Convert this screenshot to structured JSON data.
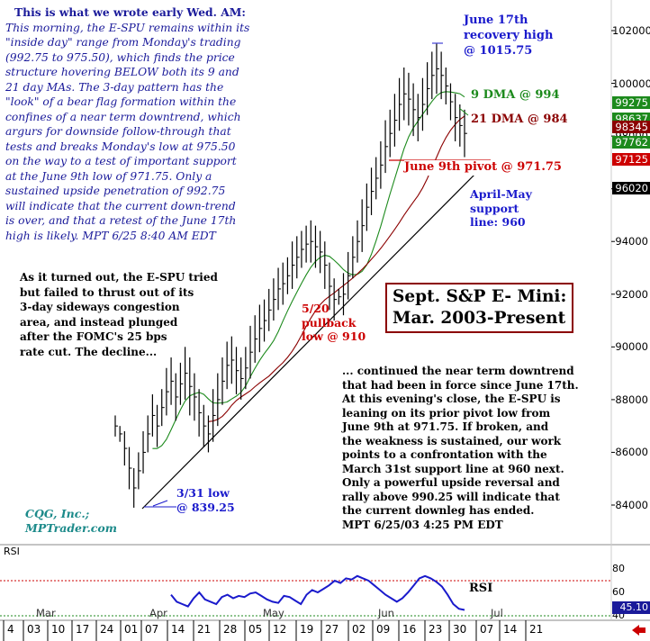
{
  "chart_data": {
    "type": "ohlc",
    "title": "Sept. S&P E- Mini:\nMar. 2003-Present",
    "source": [
      "CQG, Inc.;",
      "MPTrader.com"
    ],
    "y_axis": {
      "range": [
        83300,
        103300
      ],
      "ticks": [
        "102000",
        "100000",
        "98000",
        "96000",
        "94000",
        "92000",
        "90000",
        "88000",
        "86000",
        "84000"
      ]
    },
    "price_tags": [
      {
        "label": "99275",
        "color": "#1c8a1c",
        "value": 99275
      },
      {
        "label": "98637",
        "color": "#1c8a1c",
        "value": 98637
      },
      {
        "label": "98345",
        "color": "#8b0000",
        "value": 98345
      },
      {
        "label": "97762",
        "color": "#1c8a1c",
        "value": 97762
      },
      {
        "label": "97125",
        "color": "#cc0000",
        "value": 97125
      },
      {
        "label": "96020",
        "color": "#000000",
        "value": 96020
      }
    ],
    "x_axis": {
      "months": [
        "Mar",
        "Apr",
        "May",
        "Jun",
        "Jul"
      ],
      "days": [
        "4",
        "03",
        "10",
        "17",
        "24",
        "01",
        "07",
        "14",
        "21",
        "28",
        "05",
        "12",
        "19",
        "27",
        "02",
        "09",
        "16",
        "23",
        "30",
        "07",
        "14",
        "21"
      ]
    },
    "series": [
      {
        "name": "9 DMA @ 994",
        "color": "#1c8a1c"
      },
      {
        "name": "21 DMA @ 984",
        "color": "#8b0000"
      }
    ],
    "bars": [
      [
        874,
        866
      ],
      [
        870,
        864
      ],
      [
        868,
        855
      ],
      [
        862,
        846
      ],
      [
        854,
        839
      ],
      [
        860,
        846
      ],
      [
        868,
        852
      ],
      [
        874,
        860
      ],
      [
        882,
        866
      ],
      [
        878,
        862
      ],
      [
        884,
        870
      ],
      [
        892,
        874
      ],
      [
        896,
        878
      ],
      [
        890,
        872
      ],
      [
        894,
        878
      ],
      [
        900,
        880
      ],
      [
        896,
        874
      ],
      [
        890,
        872
      ],
      [
        884,
        866
      ],
      [
        878,
        862
      ],
      [
        874,
        860
      ],
      [
        884,
        864
      ],
      [
        890,
        870
      ],
      [
        896,
        878
      ],
      [
        902,
        884
      ],
      [
        904,
        886
      ],
      [
        900,
        882
      ],
      [
        896,
        880
      ],
      [
        900,
        884
      ],
      [
        908,
        888
      ],
      [
        912,
        894
      ],
      [
        916,
        898
      ],
      [
        918,
        902
      ],
      [
        922,
        906
      ],
      [
        926,
        910
      ],
      [
        930,
        914
      ],
      [
        932,
        916
      ],
      [
        934,
        920
      ],
      [
        940,
        922
      ],
      [
        942,
        926
      ],
      [
        944,
        930
      ],
      [
        946,
        932
      ],
      [
        948,
        932
      ],
      [
        946,
        930
      ],
      [
        944,
        928
      ],
      [
        940,
        922
      ],
      [
        932,
        914
      ],
      [
        926,
        910
      ],
      [
        922,
        916
      ],
      [
        928,
        912
      ],
      [
        936,
        918
      ],
      [
        942,
        926
      ],
      [
        948,
        932
      ],
      [
        956,
        936
      ],
      [
        962,
        944
      ],
      [
        968,
        950
      ],
      [
        972,
        956
      ],
      [
        978,
        960
      ],
      [
        986,
        966
      ],
      [
        990,
        972
      ],
      [
        996,
        976
      ],
      [
        1002,
        982
      ],
      [
        1006,
        986
      ],
      [
        1004,
        984
      ],
      [
        1000,
        980
      ],
      [
        996,
        978
      ],
      [
        1002,
        982
      ],
      [
        1008,
        988
      ],
      [
        1012,
        994
      ],
      [
        1015,
        996
      ],
      [
        1012,
        994
      ],
      [
        1006,
        992
      ],
      [
        1000,
        986
      ],
      [
        996,
        978
      ],
      [
        992,
        976
      ],
      [
        990,
        972
      ]
    ],
    "support_line": {
      "label": "April-May\nsupport\nline: 960"
    },
    "annotations": {
      "recovery_high": "June 17th\nrecovery high\n@ 1015.75",
      "pivot": "June 9th pivot @ 971.75",
      "pullback_low": "5/20\npullback\nlow @ 910",
      "march_low": "3/31 low\n@ 839.25"
    },
    "rsi": {
      "label": "RSI",
      "axis_label": "RSI",
      "ticks": [
        "80",
        "60",
        "40"
      ],
      "current_tag": "45.10",
      "values": [
        58,
        52,
        50,
        48,
        55,
        60,
        54,
        52,
        50,
        56,
        58,
        55,
        57,
        56,
        59,
        60,
        57,
        54,
        52,
        51,
        57,
        56,
        53,
        50,
        58,
        62,
        60,
        63,
        66,
        70,
        68,
        72,
        71,
        74,
        72,
        70,
        66,
        62,
        58,
        55,
        52,
        55,
        60,
        66,
        72,
        74,
        72,
        69,
        65,
        58,
        50,
        46,
        45
      ]
    }
  },
  "notes": {
    "morning_heading": "This is what we wrote early Wed. AM:",
    "morning_lines": [
      "This morning, the E-SPU remains within its",
      "\"inside day\" range from Monday's trading",
      "(992.75 to 975.50), which finds the price",
      "structure hovering BELOW both its 9 and",
      "21 day MAs. The 3-day pattern has the",
      "\"look\" of a bear flag formation within the",
      "confines of a near term downtrend, which",
      "argurs for downside follow-through that",
      "tests and breaks Monday's low at 975.50",
      "on the way to a test of important support",
      "at the June 9th low of 971.75. Only a",
      "sustained upside penetration of 992.75",
      "will indicate that the current down-trend",
      "is over, and that a retest of the June 17th",
      "high is likely. MPT  6/25 8:40 AM EDT"
    ],
    "turned_out_lines": [
      "As it turned out, the E-SPU tried",
      "but failed to thrust out of its",
      "3-day sideways congestion",
      "area, and instead plunged",
      "after the FOMC's 25 bps",
      "rate cut. The decline..."
    ],
    "continued_lines": [
      "... continued the near term downtrend",
      "that had been in force since June 17th.",
      "At this evening's close, the E-SPU is",
      "leaning on its prior pivot low from",
      "June 9th at 971.75. If broken, and",
      "the weakness is sustained, our work",
      "points to a confrontation with the",
      "March 31st support line at 960 next.",
      "Only a powerful upside reversal and",
      "rally above 990.25 will indicate that",
      "the current downleg has ended.",
      "MPT 6/25/03  4:25 PM EDT"
    ]
  }
}
